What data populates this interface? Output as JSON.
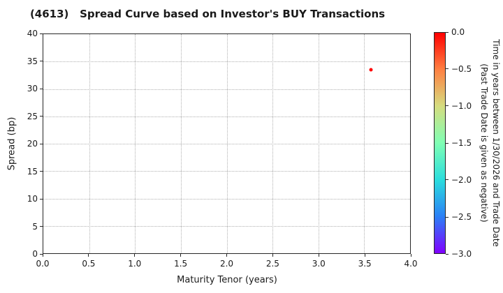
{
  "chart_data": {
    "type": "scatter",
    "title": "(4613)   Spread Curve based on Investor's BUY Transactions",
    "xlabel": "Maturity Tenor (years)",
    "ylabel": "Spread (bp)",
    "xlim": [
      0.0,
      4.0
    ],
    "ylim": [
      0,
      40
    ],
    "grid": true,
    "grid_style": "dotted",
    "xticks": [
      "0.0",
      "0.5",
      "1.0",
      "1.5",
      "2.0",
      "2.5",
      "3.0",
      "3.5",
      "4.0"
    ],
    "yticks": [
      "0",
      "5",
      "10",
      "15",
      "20",
      "25",
      "30",
      "35",
      "40"
    ],
    "points": [
      {
        "x": 3.57,
        "y": 33.5,
        "colorbar_value": 0.0,
        "color": "#ff0000"
      }
    ],
    "colorbar": {
      "label_line1": "Time in years between 1/30/2026 and Trade Date",
      "label_line2": "(Past Trade Date is given as negative)",
      "ticks": [
        "0.0",
        "−0.5",
        "−1.0",
        "−1.5",
        "−2.0",
        "−2.5",
        "−3.0"
      ],
      "range_top": 0.0,
      "range_bottom": -3.0,
      "colormap": "rainbow",
      "gradient_stops": [
        "#ff0000",
        "#ff8042",
        "#d5dd80",
        "#80ffb4",
        "#2bdddd",
        "#2b80f6",
        "#8000ff"
      ]
    }
  }
}
